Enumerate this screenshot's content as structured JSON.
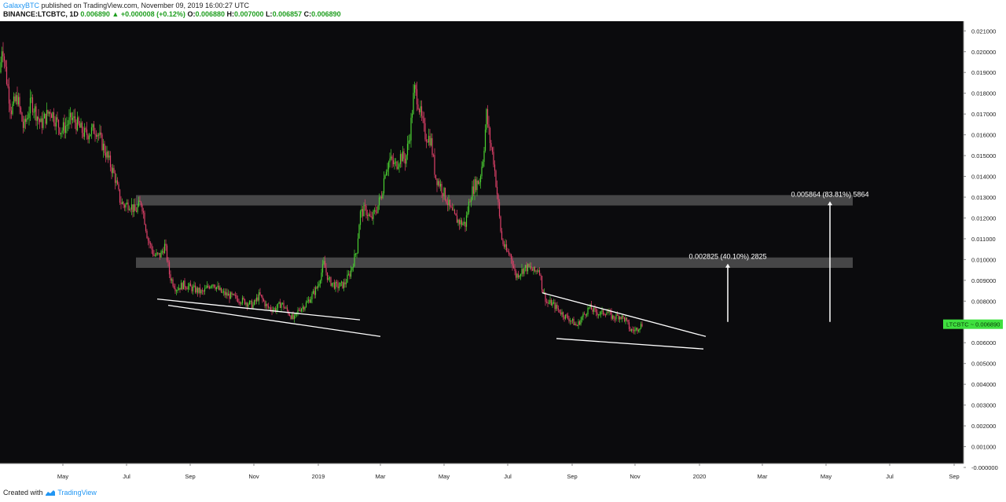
{
  "header": {
    "author": "GalaxyBTC",
    "published": "published on TradingView.com, November 09, 2019 16:00:27 UTC",
    "symbol": "BINANCE:LTCBTC, 1D",
    "last": "0.006890",
    "change": "+0.000008 (+0.12%)",
    "o_label": "O:",
    "o_val": "0.006880",
    "h_label": "H:",
    "h_val": "0.007000",
    "l_label": "L:",
    "l_val": "0.006857",
    "c_label": "C:",
    "c_val": "0.006890"
  },
  "footer": {
    "created_with": "Created with",
    "brand": "TradingView"
  },
  "colors": {
    "background": "#0b0b0d",
    "up": "#4bd132",
    "down": "#e0416a",
    "zone": "#6e6e6e",
    "lines": "#ffffff",
    "price_tag": "#3fe03f"
  },
  "chart_data": {
    "type": "candlestick",
    "ylim": [
      0,
      0.0212
    ],
    "y_ticks": [
      "0.021000",
      "0.020000",
      "0.019000",
      "0.018000",
      "0.017000",
      "0.016000",
      "0.015000",
      "0.014000",
      "0.013000",
      "0.012000",
      "0.011000",
      "0.010000",
      "0.009000",
      "0.008000",
      "0.007000",
      "0.006000",
      "0.005000",
      "0.004000",
      "0.003000",
      "0.002000",
      "0.001000",
      "-0.000000"
    ],
    "x_ticks": [
      "May",
      "Jul",
      "Sep",
      "Nov",
      "2019",
      "Mar",
      "May",
      "Jul",
      "Sep",
      "Nov",
      "2020",
      "Mar",
      "May",
      "Jul",
      "Sep"
    ],
    "price_label": "LTCBTC",
    "price_value": "0.006890",
    "resistance_zones": [
      [
        0.0126,
        0.0131
      ],
      [
        0.0096,
        0.0101
      ]
    ],
    "measures": [
      {
        "text": "0.002825 (40.10%) 2825",
        "from": 0.007,
        "to": 0.0098
      },
      {
        "text": "0.005864 (83.81%) 5864",
        "from": 0.007,
        "to": 0.0128
      }
    ],
    "anchors": [
      [
        0,
        0.019
      ],
      [
        3,
        0.0205
      ],
      [
        8,
        0.0188
      ],
      [
        14,
        0.0172
      ],
      [
        22,
        0.0178
      ],
      [
        30,
        0.0163
      ],
      [
        40,
        0.0176
      ],
      [
        52,
        0.0165
      ],
      [
        64,
        0.0172
      ],
      [
        78,
        0.0162
      ],
      [
        92,
        0.0168
      ],
      [
        108,
        0.016
      ],
      [
        122,
        0.0163
      ],
      [
        136,
        0.015
      ],
      [
        146,
        0.014
      ],
      [
        153,
        0.0128
      ],
      [
        158,
        0.0126
      ],
      [
        165,
        0.0127
      ],
      [
        172,
        0.0123
      ],
      [
        180,
        0.0128
      ],
      [
        188,
        0.011
      ],
      [
        196,
        0.0102
      ],
      [
        204,
        0.0102
      ],
      [
        210,
        0.0107
      ],
      [
        216,
        0.0092
      ],
      [
        224,
        0.0086
      ],
      [
        234,
        0.0088
      ],
      [
        245,
        0.0086
      ],
      [
        258,
        0.0084
      ],
      [
        270,
        0.0089
      ],
      [
        282,
        0.0084
      ],
      [
        296,
        0.0082
      ],
      [
        310,
        0.008
      ],
      [
        322,
        0.0078
      ],
      [
        330,
        0.0083
      ],
      [
        340,
        0.0077
      ],
      [
        350,
        0.0076
      ],
      [
        358,
        0.0079
      ],
      [
        366,
        0.0075
      ],
      [
        374,
        0.0071
      ],
      [
        380,
        0.0076
      ],
      [
        388,
        0.0078
      ],
      [
        396,
        0.0082
      ],
      [
        404,
        0.0087
      ],
      [
        412,
        0.0098
      ],
      [
        418,
        0.009
      ],
      [
        428,
        0.0087
      ],
      [
        438,
        0.0088
      ],
      [
        446,
        0.0094
      ],
      [
        454,
        0.0105
      ],
      [
        458,
        0.0122
      ],
      [
        465,
        0.0124
      ],
      [
        472,
        0.0119
      ],
      [
        480,
        0.0125
      ],
      [
        486,
        0.0132
      ],
      [
        490,
        0.0143
      ],
      [
        496,
        0.0148
      ],
      [
        503,
        0.0145
      ],
      [
        510,
        0.015
      ],
      [
        516,
        0.0148
      ],
      [
        522,
        0.0162
      ],
      [
        527,
        0.0182
      ],
      [
        531,
        0.0178
      ],
      [
        536,
        0.0168
      ],
      [
        541,
        0.016
      ],
      [
        548,
        0.0158
      ],
      [
        554,
        0.014
      ],
      [
        560,
        0.0136
      ],
      [
        567,
        0.013
      ],
      [
        573,
        0.0124
      ],
      [
        579,
        0.012
      ],
      [
        585,
        0.0118
      ],
      [
        592,
        0.0117
      ],
      [
        598,
        0.013
      ],
      [
        604,
        0.0136
      ],
      [
        610,
        0.0138
      ],
      [
        615,
        0.015
      ],
      [
        619,
        0.017
      ],
      [
        623,
        0.0158
      ],
      [
        628,
        0.0148
      ],
      [
        633,
        0.013
      ],
      [
        638,
        0.011
      ],
      [
        644,
        0.0104
      ],
      [
        650,
        0.0102
      ],
      [
        656,
        0.0092
      ],
      [
        662,
        0.0094
      ],
      [
        668,
        0.0096
      ],
      [
        674,
        0.0096
      ],
      [
        680,
        0.0094
      ],
      [
        686,
        0.0096
      ],
      [
        690,
        0.0086
      ],
      [
        696,
        0.0079
      ],
      [
        702,
        0.0079
      ],
      [
        710,
        0.0076
      ],
      [
        718,
        0.0073
      ],
      [
        726,
        0.0071
      ],
      [
        734,
        0.0068
      ],
      [
        742,
        0.0073
      ],
      [
        750,
        0.0077
      ],
      [
        756,
        0.0075
      ],
      [
        764,
        0.0074
      ],
      [
        772,
        0.0075
      ],
      [
        780,
        0.0072
      ],
      [
        788,
        0.0073
      ],
      [
        796,
        0.0071
      ],
      [
        802,
        0.0066
      ],
      [
        808,
        0.0066
      ],
      [
        814,
        0.0068
      ],
      [
        818,
        0.0069
      ]
    ],
    "trendlines": [
      [
        [
          200,
          0.0081
        ],
        [
          458,
          0.0071
        ]
      ],
      [
        [
          214,
          0.0078
        ],
        [
          484,
          0.0063
        ]
      ],
      [
        [
          690,
          0.0084
        ],
        [
          898,
          0.0063
        ]
      ],
      [
        [
          708,
          0.0062
        ],
        [
          895,
          0.0057
        ]
      ]
    ]
  }
}
